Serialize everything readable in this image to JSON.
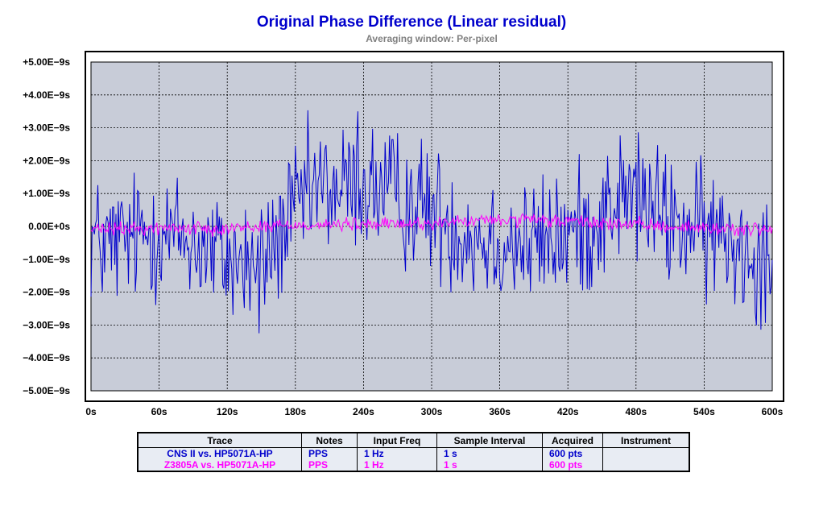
{
  "chart_data": {
    "type": "line",
    "title": "Original Phase Difference (Linear residual)",
    "subtitle": "Averaging window: Per-pixel",
    "xlabel": "",
    "ylabel": "",
    "xlim": [
      0,
      600
    ],
    "ylim": [
      -5e-09,
      5e-09
    ],
    "grid": true,
    "x_ticks": [
      "0s",
      "60s",
      "120s",
      "180s",
      "240s",
      "300s",
      "360s",
      "420s",
      "480s",
      "540s",
      "600s"
    ],
    "y_ticks": [
      "+5.00E−9s",
      "+4.00E−9s",
      "+3.00E−9s",
      "+2.00E−9s",
      "+1.00E−9s",
      "0.00E+0s",
      "−1.00E−9s",
      "−2.00E−9s",
      "−3.00E−9s",
      "−4.00E−9s",
      "−5.00E−9s"
    ],
    "x_tick_values": [
      0,
      60,
      120,
      180,
      240,
      300,
      360,
      420,
      480,
      540,
      600
    ],
    "y_tick_values": [
      5e-09,
      4e-09,
      3e-09,
      2e-09,
      1e-09,
      0,
      -1e-09,
      -2e-09,
      -3e-09,
      -4e-09,
      -5e-09
    ],
    "series": [
      {
        "name": "CNS II vs. HP5071A-HP",
        "color": "#0000cc",
        "x": [
          0,
          12,
          24,
          36,
          48,
          60,
          72,
          84,
          96,
          108,
          120,
          132,
          144,
          156,
          168,
          180,
          192,
          204,
          216,
          228,
          240,
          252,
          264,
          276,
          288,
          300,
          312,
          324,
          336,
          348,
          360,
          372,
          384,
          396,
          408,
          420,
          432,
          444,
          456,
          468,
          480,
          492,
          504,
          516,
          528,
          540,
          552,
          564,
          576,
          588,
          600
        ],
        "y": [
          -3e-10,
          -6e-10,
          -5e-10,
          -4e-10,
          -2e-10,
          -1e-10,
          -3e-10,
          -4e-10,
          -6e-10,
          -8e-10,
          -1e-09,
          -1.1e-09,
          -1.2e-09,
          -9e-10,
          -2e-10,
          5e-10,
          1e-09,
          1.2e-09,
          1.1e-09,
          1.2e-09,
          1.3e-09,
          1.1e-09,
          1e-09,
          8e-10,
          7e-10,
          5e-10,
          2e-10,
          -1e-10,
          -3e-10,
          -4e-10,
          -4e-10,
          -5e-10,
          -6e-10,
          -5e-10,
          -4e-10,
          -3e-10,
          -1e-10,
          1e-10,
          6e-10,
          9e-10,
          1e-09,
          6e-10,
          3e-10,
          1e-10,
          -1e-10,
          -2e-10,
          -3e-10,
          -4e-10,
          -6e-10,
          -8e-10,
          -9e-10
        ],
        "noise_amplitude": 1.5e-09,
        "extremes": {
          "max": 3.5e-09,
          "max_x": 235,
          "min": -3.25e-09,
          "min_x": 148
        }
      },
      {
        "name": "Z3805A vs. HP5071A-HP",
        "color": "#ff00ff",
        "x": [
          0,
          60,
          120,
          180,
          240,
          300,
          360,
          420,
          480,
          540,
          600
        ],
        "y": [
          -1e-10,
          -5e-11,
          -5e-11,
          5e-11,
          5e-11,
          1e-10,
          2e-10,
          1.5e-10,
          5e-11,
          -5e-11,
          -1e-10
        ],
        "noise_amplitude": 1.5e-10
      }
    ]
  },
  "legend": {
    "headers": [
      "Trace",
      "Notes",
      "Input Freq",
      "Sample Interval",
      "Acquired",
      "Instrument"
    ],
    "rows": [
      {
        "trace": "CNS II vs. HP5071A-HP",
        "notes": "PPS",
        "input_freq": "1 Hz",
        "sample_interval": "1 s",
        "acquired": "600 pts",
        "instrument": "",
        "color": "#0000cc"
      },
      {
        "trace": "Z3805A vs. HP5071A-HP",
        "notes": "PPS",
        "input_freq": "1 Hz",
        "sample_interval": "1 s",
        "acquired": "600 pts",
        "instrument": "",
        "color": "#ff00ff"
      }
    ]
  },
  "colors": {
    "plot_bg": "#c8ccd8",
    "grid": "#000000",
    "axis_text": "#000000"
  }
}
